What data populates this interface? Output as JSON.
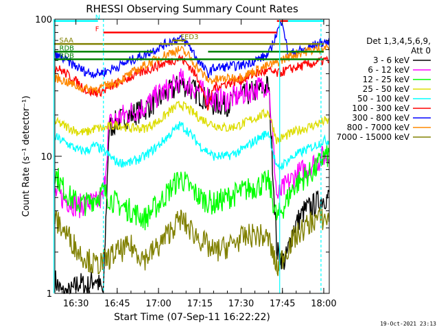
{
  "chart_data": {
    "type": "line",
    "title": "RHESSI Observing Summary Count Rates",
    "xlabel": "Start Time (07-Sep-11 16:22:22)",
    "ylabel": "Count Rate (s⁻¹ detector⁻¹)",
    "y_scale": "log",
    "ylim": [
      1,
      100
    ],
    "x_range_minutes": [
      "16:22:22",
      "18:02:00"
    ],
    "x_ticks": [
      "16:30",
      "16:45",
      "17:00",
      "17:15",
      "17:30",
      "17:45",
      "18:00"
    ],
    "y_ticks": [
      "1",
      "10",
      "100"
    ],
    "footer": "19-Oct-2021 23:13",
    "legend": {
      "header1": "Det 1,3,4,5,6,9,",
      "header2": "Att 0",
      "placement": "right-outside"
    },
    "series": [
      {
        "name": "3 - 6 keV",
        "color": "#000000",
        "x": [
          "16:22",
          "16:25",
          "16:28",
          "16:31",
          "16:34",
          "16:37",
          "16:40",
          "16:42",
          "16:45",
          "16:50",
          "16:55",
          "17:00",
          "17:05",
          "17:08",
          "17:11",
          "17:15",
          "17:20",
          "17:25",
          "17:30",
          "17:35",
          "17:40",
          "17:43",
          "17:46",
          "17:49",
          "17:53",
          "17:57",
          "18:00"
        ],
        "y": [
          1.3,
          1.0,
          1.0,
          1.2,
          1.1,
          1.3,
          1.0,
          16,
          18,
          20,
          22,
          26,
          30,
          34,
          32,
          28,
          24,
          24,
          27,
          30,
          33,
          2,
          1.7,
          3,
          4,
          4.5,
          5
        ]
      },
      {
        "name": "6 - 12 keV",
        "color": "#ff00ff",
        "x": [
          "16:22",
          "16:25",
          "16:28",
          "16:31",
          "16:34",
          "16:37",
          "16:40",
          "16:42",
          "16:45",
          "16:50",
          "16:55",
          "17:00",
          "17:05",
          "17:08",
          "17:11",
          "17:15",
          "17:20",
          "17:25",
          "17:30",
          "17:35",
          "17:40",
          "17:43",
          "17:46",
          "17:49",
          "17:53",
          "17:57",
          "18:00"
        ],
        "y": [
          5.5,
          5,
          4.6,
          4.3,
          4.6,
          4.5,
          5,
          17,
          19,
          21,
          23,
          28,
          32,
          36,
          33,
          30,
          26,
          26,
          28,
          31,
          34,
          5,
          6,
          7,
          8,
          9,
          10
        ]
      },
      {
        "name": "12 - 25 keV",
        "color": "#00ff00",
        "x": [
          "16:22",
          "16:25",
          "16:28",
          "16:31",
          "16:34",
          "16:37",
          "16:40",
          "16:42",
          "16:45",
          "16:50",
          "16:55",
          "17:00",
          "17:05",
          "17:08",
          "17:11",
          "17:15",
          "17:20",
          "17:25",
          "17:30",
          "17:35",
          "17:40",
          "17:43",
          "17:46",
          "17:49",
          "17:53",
          "17:57",
          "18:00"
        ],
        "y": [
          8,
          6,
          5,
          4.5,
          4.5,
          5,
          5.5,
          5,
          4.5,
          4,
          3.5,
          4.5,
          6,
          7,
          6,
          5,
          4.5,
          5,
          5.5,
          6,
          6.5,
          3.5,
          4.5,
          6,
          7,
          8,
          10
        ]
      },
      {
        "name": "25 - 50 keV",
        "color": "#dddd00",
        "x": [
          "16:22",
          "16:25",
          "16:28",
          "16:31",
          "16:34",
          "16:37",
          "16:40",
          "16:45",
          "16:50",
          "16:55",
          "17:00",
          "17:05",
          "17:08",
          "17:11",
          "17:15",
          "17:20",
          "17:25",
          "17:30",
          "17:35",
          "17:40",
          "17:43",
          "17:46",
          "17:49",
          "17:53",
          "17:57",
          "18:00"
        ],
        "y": [
          18,
          17,
          16,
          15,
          15,
          16,
          16,
          17,
          16,
          16,
          18,
          22,
          24,
          22,
          19,
          17,
          16,
          17,
          19,
          21,
          13,
          14,
          15,
          16,
          17,
          18
        ]
      },
      {
        "name": "50 - 100 keV",
        "color": "#00ffff",
        "x": [
          "16:22",
          "16:25",
          "16:28",
          "16:31",
          "16:34",
          "16:37",
          "16:40",
          "16:45",
          "16:50",
          "16:55",
          "17:00",
          "17:05",
          "17:08",
          "17:11",
          "17:15",
          "17:20",
          "17:25",
          "17:30",
          "17:35",
          "17:40",
          "17:43",
          "17:46",
          "17:49",
          "17:53",
          "17:57",
          "18:00"
        ],
        "y": [
          14,
          13,
          12,
          11,
          11,
          12,
          11,
          9,
          9,
          10,
          12,
          15,
          17,
          15,
          12,
          10,
          10,
          11,
          13,
          15,
          8,
          9,
          10,
          11,
          12,
          13
        ]
      },
      {
        "name": "100 - 300 keV",
        "color": "#ff0000",
        "x": [
          "16:22",
          "16:25",
          "16:28",
          "16:31",
          "16:34",
          "16:37",
          "16:40",
          "16:45",
          "16:50",
          "16:55",
          "17:00",
          "17:05",
          "17:08",
          "17:11",
          "17:15",
          "17:18",
          "17:20",
          "17:25",
          "17:30",
          "17:35",
          "17:40",
          "17:43",
          "17:46",
          "17:49",
          "17:53",
          "17:57",
          "18:00"
        ],
        "y": [
          45,
          42,
          38,
          34,
          30,
          29,
          30,
          34,
          38,
          42,
          46,
          50,
          52,
          46,
          35,
          22,
          32,
          34,
          36,
          40,
          42,
          40,
          42,
          44,
          46,
          48,
          50
        ]
      },
      {
        "name": "300 - 800 keV",
        "color": "#0000ff",
        "x": [
          "16:22",
          "16:25",
          "16:28",
          "16:31",
          "16:34",
          "16:37",
          "16:40",
          "16:45",
          "16:50",
          "16:55",
          "17:00",
          "17:05",
          "17:08",
          "17:11",
          "17:15",
          "17:18",
          "17:20",
          "17:25",
          "17:30",
          "17:35",
          "17:40",
          "17:43",
          "17:45",
          "17:47",
          "17:50",
          "17:53",
          "17:57",
          "18:00"
        ],
        "y": [
          55,
          52,
          48,
          44,
          41,
          40,
          41,
          45,
          50,
          55,
          62,
          70,
          72,
          65,
          48,
          40,
          44,
          45,
          46,
          50,
          55,
          80,
          100,
          55,
          58,
          60,
          65,
          68
        ]
      },
      {
        "name": "800 - 7000 keV",
        "color": "#ff8800",
        "x": [
          "16:22",
          "16:25",
          "16:28",
          "16:31",
          "16:34",
          "16:37",
          "16:40",
          "16:45",
          "16:50",
          "16:55",
          "17:00",
          "17:05",
          "17:08",
          "17:11",
          "17:15",
          "17:18",
          "17:20",
          "17:25",
          "17:30",
          "17:35",
          "17:40",
          "17:43",
          "17:46",
          "17:49",
          "17:53",
          "17:57",
          "18:00"
        ],
        "y": [
          38,
          36,
          34,
          32,
          31,
          31,
          32,
          35,
          40,
          46,
          52,
          58,
          60,
          54,
          42,
          36,
          36,
          37,
          38,
          42,
          46,
          48,
          52,
          55,
          58,
          60,
          62
        ]
      },
      {
        "name": "7000 - 15000 keV",
        "color": "#808000",
        "x": [
          "16:22",
          "16:25",
          "16:28",
          "16:31",
          "16:34",
          "16:37",
          "16:40",
          "16:45",
          "16:50",
          "16:55",
          "17:00",
          "17:05",
          "17:08",
          "17:11",
          "17:15",
          "17:20",
          "17:25",
          "17:30",
          "17:35",
          "17:40",
          "17:43",
          "17:46",
          "17:49",
          "17:53",
          "17:57",
          "18:00"
        ],
        "y": [
          3.5,
          3,
          2.5,
          2,
          1.8,
          1.6,
          1.7,
          2,
          2.2,
          1.8,
          2.2,
          3,
          3.5,
          3,
          2.5,
          2,
          2.2,
          2.5,
          2.7,
          2.5,
          1.5,
          2,
          2.5,
          3,
          3.5,
          3.5
        ]
      }
    ],
    "flags": [
      {
        "label": "N",
        "color": "#00ffff",
        "y": 97,
        "x_start": "16:22",
        "x_end": "16:38"
      },
      {
        "label": "",
        "color": "#00ffff",
        "y": 97,
        "x_start": "17:44",
        "x_end": "18:00"
      },
      {
        "label": "F",
        "color": "#ff0000",
        "y": 80,
        "x_start": "16:40",
        "x_end": "17:43"
      },
      {
        "label": "",
        "color": "#ff0000",
        "y": 97,
        "x_start": "17:43",
        "x_end": "17:47"
      },
      {
        "label": "SAA",
        "color": "#808000",
        "y": 66,
        "x_start": "16:22",
        "x_end": "18:00"
      },
      {
        "label": "FED3",
        "color": "#808000",
        "y": 70,
        "x_start": "17:05",
        "x_end": "17:10"
      },
      {
        "label": "RDB",
        "color": "#008000",
        "y": 58,
        "x_start": "16:22",
        "x_end": "16:58"
      },
      {
        "label": "",
        "color": "#008000",
        "y": 58,
        "x_start": "17:18",
        "x_end": "18:00"
      },
      {
        "label": "RDB",
        "color": "#008000",
        "y": 51,
        "x_start": "16:22",
        "x_end": "18:00"
      }
    ],
    "vertical_markers": [
      {
        "color": "#00ffff",
        "x": "16:22",
        "style": "solid"
      },
      {
        "color": "#00ffff",
        "x": "16:40",
        "style": "dashed"
      },
      {
        "color": "#00ffff",
        "x": "17:44",
        "style": "solid"
      },
      {
        "color": "#00ffff",
        "x": "17:59",
        "style": "dashed"
      }
    ]
  }
}
